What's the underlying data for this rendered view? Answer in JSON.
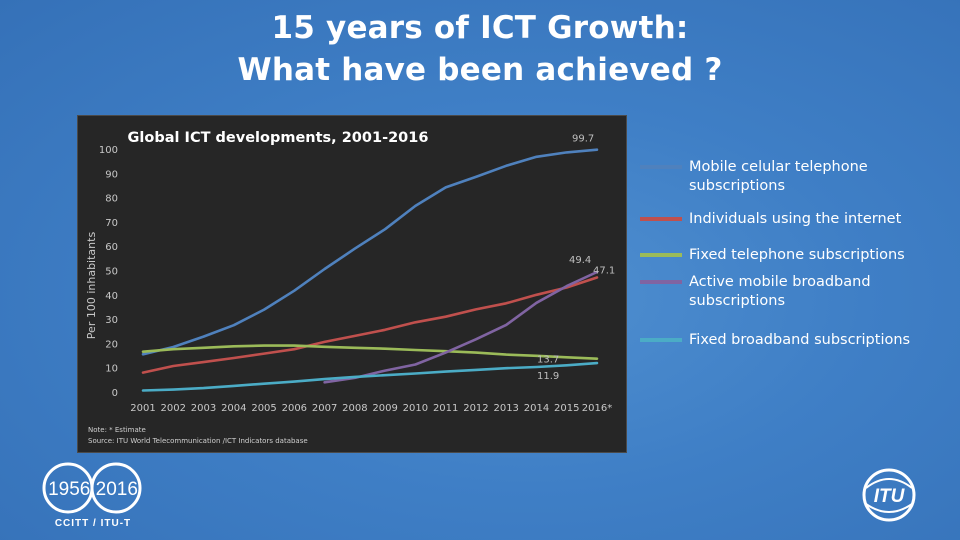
{
  "slide": {
    "title_line1": "15 years of ICT Growth:",
    "title_line2": "What have been achieved ?",
    "logo_left_text": "1956/2016",
    "logo_left_caption": "CCITT / ITU-T",
    "logo_right_text": "ITU"
  },
  "chart_data": {
    "type": "line",
    "title": "Global ICT developments, 2001-2016",
    "xlabel": "",
    "ylabel": "Per 100 inhabitants",
    "categories": [
      "2001",
      "2002",
      "2003",
      "2004",
      "2005",
      "2006",
      "2007",
      "2008",
      "2009",
      "2010",
      "2011",
      "2012",
      "2013",
      "2014",
      "2015",
      "2016*"
    ],
    "ylim": [
      0,
      100
    ],
    "yticks": [
      0,
      10,
      20,
      30,
      40,
      50,
      60,
      70,
      80,
      90,
      100
    ],
    "grid": false,
    "legend_position": "right",
    "series": [
      {
        "name": "Mobile celular telephone subscriptions",
        "color": "#4f81bd",
        "values": [
          15.5,
          18.5,
          22.8,
          27.5,
          33.9,
          41.7,
          50.6,
          59.0,
          67.0,
          76.6,
          84.2,
          88.5,
          93.1,
          96.8,
          98.6,
          99.7
        ]
      },
      {
        "name": "Individuals using the internet",
        "color": "#c0504d",
        "values": [
          8.0,
          10.7,
          12.3,
          14.0,
          15.8,
          17.6,
          20.6,
          23.1,
          25.6,
          28.7,
          31.0,
          34.0,
          36.5,
          40.0,
          43.0,
          47.1
        ]
      },
      {
        "name": "Fixed telephone subscriptions",
        "color": "#9bbb59",
        "values": [
          16.6,
          17.6,
          18.2,
          18.8,
          19.1,
          19.1,
          18.6,
          18.2,
          17.8,
          17.3,
          16.8,
          16.2,
          15.4,
          14.9,
          14.3,
          13.7
        ]
      },
      {
        "name": "Active mobile broadband subscriptions",
        "color": "#8064a2",
        "values": [
          null,
          null,
          null,
          null,
          null,
          null,
          4.0,
          5.8,
          8.8,
          11.3,
          16.2,
          21.7,
          27.6,
          36.7,
          43.6,
          49.4
        ]
      },
      {
        "name": "Fixed broadband subscriptions",
        "color": "#4bacc6",
        "values": [
          0.6,
          1.0,
          1.6,
          2.5,
          3.4,
          4.3,
          5.3,
          6.2,
          6.9,
          7.6,
          8.4,
          9.1,
          9.8,
          10.3,
          11.0,
          11.9
        ]
      }
    ],
    "data_labels": [
      {
        "text": "99.7",
        "series": 0,
        "index": 15
      },
      {
        "text": "49.4",
        "series": 3,
        "index": 15
      },
      {
        "text": "47.1",
        "series": 1,
        "index": 15
      },
      {
        "text": "13.7",
        "series": 2,
        "index": 15
      },
      {
        "text": "11.9",
        "series": 4,
        "index": 15
      }
    ],
    "note": "Note: * Estimate",
    "source": "Source: ITU World Telecommunication /ICT Indicators database"
  }
}
